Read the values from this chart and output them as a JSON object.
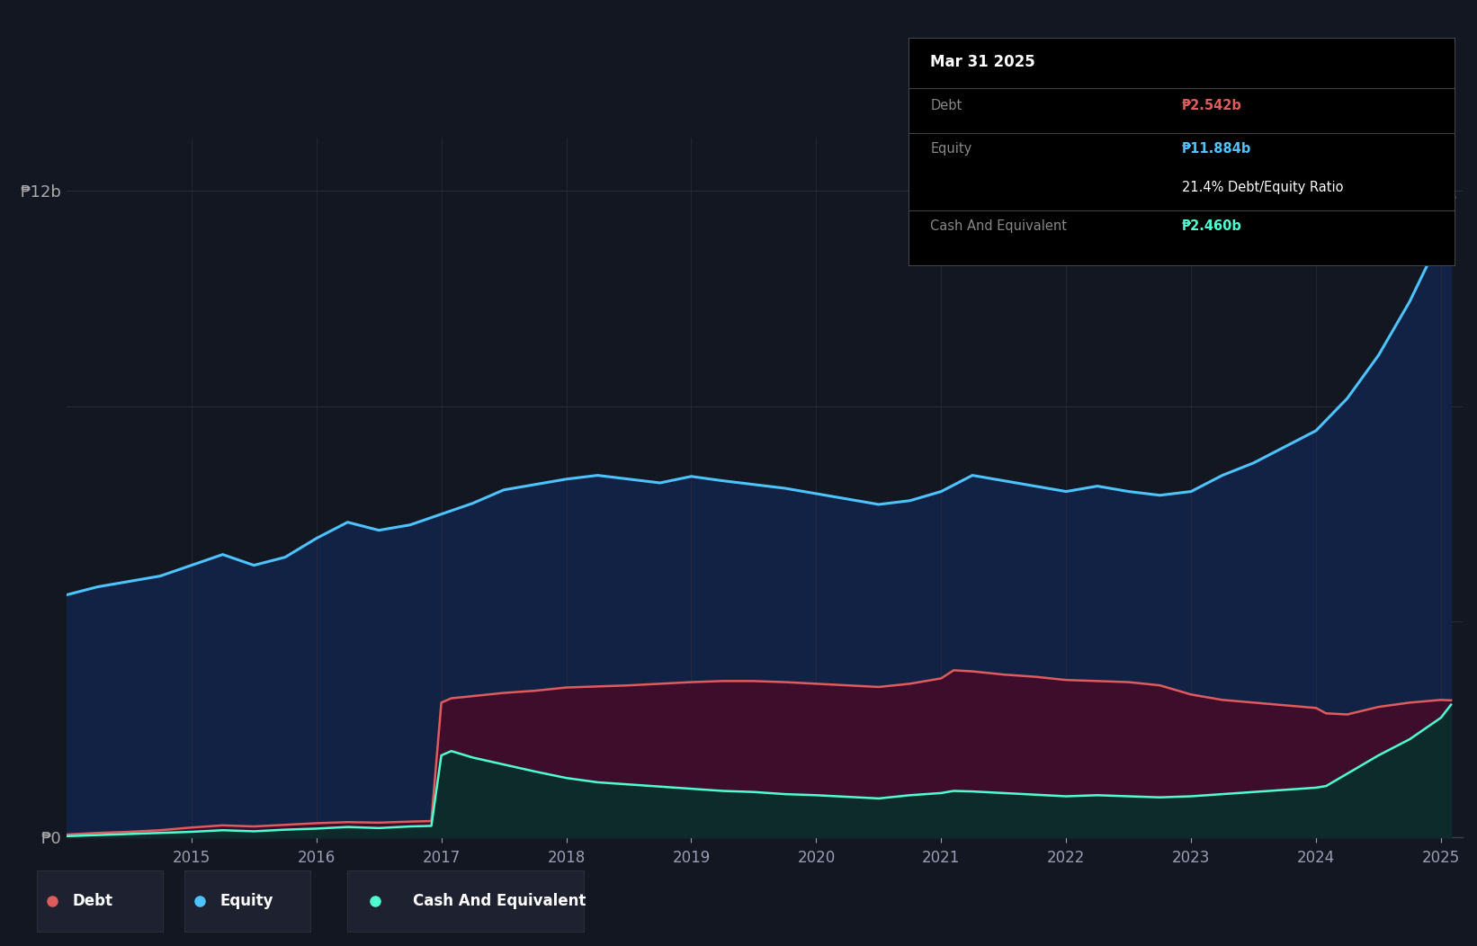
{
  "background_color": "#131722",
  "plot_bg_color": "#131722",
  "ylabel_12b": "₱12b",
  "ylabel_0": "₱0",
  "x_ticks": [
    2015,
    2016,
    2017,
    2018,
    2019,
    2020,
    2021,
    2022,
    2023,
    2024,
    2025
  ],
  "tooltip_title": "Mar 31 2025",
  "tooltip_debt_label": "Debt",
  "tooltip_debt_value": "₱2.542b",
  "tooltip_equity_label": "Equity",
  "tooltip_equity_value": "₱11.884b",
  "tooltip_ratio": "21.4% Debt/Equity Ratio",
  "tooltip_cash_label": "Cash And Equivalent",
  "tooltip_cash_value": "₱2.460b",
  "debt_color": "#e05c5c",
  "equity_color": "#4dc3ff",
  "cash_color": "#4dffd2",
  "grid_color": "#2a2e39",
  "equity_fill_color": "#112244",
  "debt_fill_color": "#3d0d2b",
  "cash_fill_color": "#0d2b2b",
  "equity_data_x": [
    2014.0,
    2014.25,
    2014.5,
    2014.75,
    2015.0,
    2015.25,
    2015.5,
    2015.75,
    2016.0,
    2016.25,
    2016.5,
    2016.75,
    2017.0,
    2017.25,
    2017.5,
    2017.75,
    2018.0,
    2018.25,
    2018.5,
    2018.75,
    2019.0,
    2019.25,
    2019.5,
    2019.75,
    2020.0,
    2020.25,
    2020.5,
    2020.75,
    2021.0,
    2021.25,
    2021.5,
    2021.75,
    2022.0,
    2022.25,
    2022.5,
    2022.75,
    2023.0,
    2023.25,
    2023.5,
    2023.75,
    2024.0,
    2024.25,
    2024.5,
    2024.75,
    2025.0,
    2025.08
  ],
  "equity_data_y": [
    4.5,
    4.65,
    4.75,
    4.85,
    5.05,
    5.25,
    5.05,
    5.2,
    5.55,
    5.85,
    5.7,
    5.8,
    6.0,
    6.2,
    6.45,
    6.55,
    6.65,
    6.72,
    6.65,
    6.58,
    6.7,
    6.62,
    6.55,
    6.48,
    6.38,
    6.28,
    6.18,
    6.25,
    6.42,
    6.72,
    6.62,
    6.52,
    6.42,
    6.52,
    6.42,
    6.35,
    6.42,
    6.72,
    6.95,
    7.25,
    7.55,
    8.15,
    8.95,
    9.95,
    11.15,
    11.884
  ],
  "debt_data_x": [
    2014.0,
    2014.25,
    2014.5,
    2014.75,
    2015.0,
    2015.25,
    2015.5,
    2015.75,
    2016.0,
    2016.25,
    2016.5,
    2016.75,
    2016.92,
    2017.0,
    2017.08,
    2017.25,
    2017.5,
    2017.75,
    2018.0,
    2018.25,
    2018.5,
    2018.75,
    2019.0,
    2019.25,
    2019.5,
    2019.75,
    2020.0,
    2020.25,
    2020.5,
    2020.75,
    2021.0,
    2021.1,
    2021.25,
    2021.5,
    2021.75,
    2022.0,
    2022.25,
    2022.5,
    2022.75,
    2023.0,
    2023.25,
    2023.5,
    2023.75,
    2024.0,
    2024.08,
    2024.25,
    2024.5,
    2024.75,
    2025.0,
    2025.08
  ],
  "debt_data_y": [
    0.05,
    0.08,
    0.1,
    0.13,
    0.18,
    0.22,
    0.2,
    0.23,
    0.26,
    0.28,
    0.27,
    0.29,
    0.3,
    2.5,
    2.58,
    2.62,
    2.68,
    2.72,
    2.78,
    2.8,
    2.82,
    2.85,
    2.88,
    2.9,
    2.9,
    2.88,
    2.85,
    2.82,
    2.79,
    2.85,
    2.95,
    3.1,
    3.08,
    3.02,
    2.98,
    2.92,
    2.9,
    2.88,
    2.82,
    2.65,
    2.55,
    2.5,
    2.45,
    2.4,
    2.3,
    2.28,
    2.42,
    2.5,
    2.55,
    2.542
  ],
  "cash_data_x": [
    2014.0,
    2014.25,
    2014.5,
    2014.75,
    2015.0,
    2015.25,
    2015.5,
    2015.75,
    2016.0,
    2016.25,
    2016.5,
    2016.75,
    2016.92,
    2017.0,
    2017.08,
    2017.25,
    2017.5,
    2017.75,
    2018.0,
    2018.25,
    2018.5,
    2018.75,
    2019.0,
    2019.25,
    2019.5,
    2019.75,
    2020.0,
    2020.25,
    2020.5,
    2020.75,
    2021.0,
    2021.1,
    2021.25,
    2021.5,
    2021.75,
    2022.0,
    2022.25,
    2022.5,
    2022.75,
    2023.0,
    2023.25,
    2023.5,
    2023.75,
    2024.0,
    2024.08,
    2024.25,
    2024.5,
    2024.75,
    2025.0,
    2025.08
  ],
  "cash_data_y": [
    0.02,
    0.04,
    0.06,
    0.08,
    0.1,
    0.13,
    0.11,
    0.14,
    0.16,
    0.19,
    0.17,
    0.2,
    0.21,
    1.52,
    1.6,
    1.48,
    1.35,
    1.22,
    1.1,
    1.02,
    0.98,
    0.94,
    0.9,
    0.86,
    0.84,
    0.8,
    0.78,
    0.75,
    0.72,
    0.78,
    0.82,
    0.86,
    0.85,
    0.82,
    0.79,
    0.76,
    0.78,
    0.76,
    0.74,
    0.76,
    0.8,
    0.84,
    0.88,
    0.92,
    0.95,
    1.18,
    1.52,
    1.82,
    2.22,
    2.46
  ],
  "ylim": [
    0,
    13.0
  ],
  "xlim": [
    2014.0,
    2025.17
  ]
}
